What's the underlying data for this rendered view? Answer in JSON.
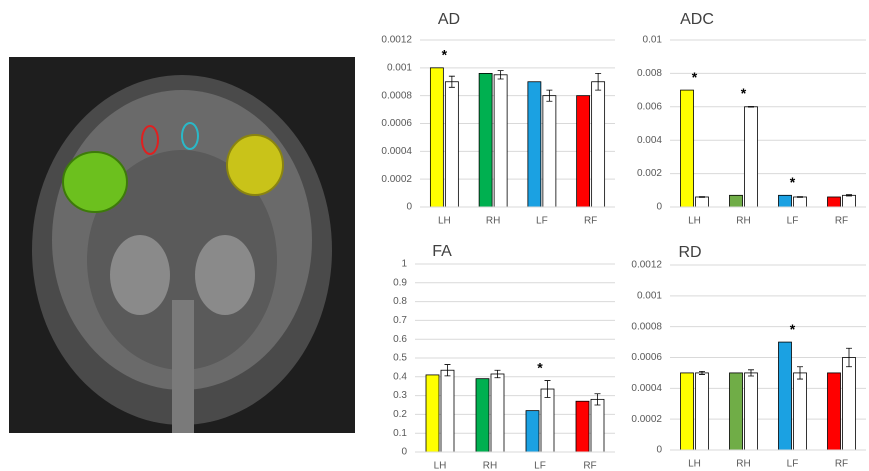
{
  "chart_data": [
    {
      "type": "bar",
      "title": "AD",
      "categories": [
        "LH",
        "RH",
        "LF",
        "RF"
      ],
      "series": [
        {
          "colors": [
            "#ffff00",
            "#00b050",
            "#1ba1e2",
            "#ff0000"
          ],
          "values": [
            0.001,
            0.00096,
            0.0009,
            0.0008
          ]
        },
        {
          "color": "#ffffff",
          "values": [
            0.0009,
            0.00095,
            0.0008,
            0.0009
          ],
          "errors": [
            4e-05,
            3e-05,
            4e-05,
            6e-05
          ]
        }
      ],
      "significance": [
        "*",
        null,
        null,
        null
      ],
      "ylim": [
        0,
        0.0012
      ],
      "yticks": [
        0,
        0.0002,
        0.0004,
        0.0006,
        0.0008,
        0.001,
        0.0012
      ],
      "grid": true
    },
    {
      "type": "bar",
      "title": "ADC",
      "categories": [
        "LH",
        "RH",
        "LF",
        "RF"
      ],
      "series": [
        {
          "colors": [
            "#ffff00",
            "#70ad47",
            "#1ba1e2",
            "#ff0000"
          ],
          "values": [
            0.007,
            0.0007,
            0.0007,
            0.0006
          ]
        },
        {
          "color": "#ffffff",
          "values": [
            0.0006,
            0.006,
            0.0006,
            0.0007
          ],
          "errors": [
            2e-05,
            2e-05,
            2e-05,
            4e-05
          ]
        }
      ],
      "significance": [
        "*",
        "*",
        "*",
        null
      ],
      "ylim": [
        0,
        0.01
      ],
      "yticks": [
        0,
        0.002,
        0.004,
        0.006,
        0.008,
        0.01
      ],
      "grid": true
    },
    {
      "type": "bar",
      "title": "FA",
      "categories": [
        "LH",
        "RH",
        "LF",
        "RF"
      ],
      "series": [
        {
          "colors": [
            "#ffff00",
            "#00b050",
            "#1ba1e2",
            "#ff0000"
          ],
          "values": [
            0.41,
            0.39,
            0.22,
            0.27
          ]
        },
        {
          "color": "#ffffff",
          "values": [
            0.435,
            0.415,
            0.335,
            0.28
          ],
          "errors": [
            0.03,
            0.02,
            0.045,
            0.03
          ]
        }
      ],
      "significance": [
        null,
        null,
        "*",
        null
      ],
      "ylim": [
        0,
        1
      ],
      "yticks": [
        0,
        0.1,
        0.2,
        0.3,
        0.4,
        0.5,
        0.6,
        0.7,
        0.8,
        0.9,
        1
      ],
      "grid": true
    },
    {
      "type": "bar",
      "title": "RD",
      "categories": [
        "LH",
        "RH",
        "LF",
        "RF"
      ],
      "series": [
        {
          "colors": [
            "#ffff00",
            "#70ad47",
            "#1ba1e2",
            "#ff0000"
          ],
          "values": [
            0.0005,
            0.0005,
            0.0007,
            0.0005
          ]
        },
        {
          "color": "#ffffff",
          "values": [
            0.0005,
            0.0005,
            0.0005,
            0.0006
          ],
          "errors": [
            1e-05,
            2e-05,
            4e-05,
            6e-05
          ]
        }
      ],
      "significance": [
        null,
        null,
        "*",
        null
      ],
      "ylim": [
        0,
        0.0012
      ],
      "yticks": [
        0,
        0.0002,
        0.0004,
        0.0006,
        0.0008,
        0.001,
        0.0012
      ],
      "grid": true
    }
  ]
}
